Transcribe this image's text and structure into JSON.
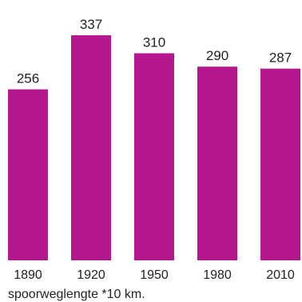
{
  "chart_data": {
    "type": "bar",
    "categories": [
      "1890",
      "1920",
      "1950",
      "1980",
      "2010"
    ],
    "values": [
      256,
      337,
      310,
      290,
      287
    ],
    "data_labels": [
      "256",
      "337",
      "310",
      "290",
      "287"
    ],
    "title": "",
    "xlabel": "spoorweglengte *10 km.",
    "ylabel": "",
    "ylim": [
      0,
      337
    ],
    "grid": false,
    "bar_color": "#B5178E"
  }
}
